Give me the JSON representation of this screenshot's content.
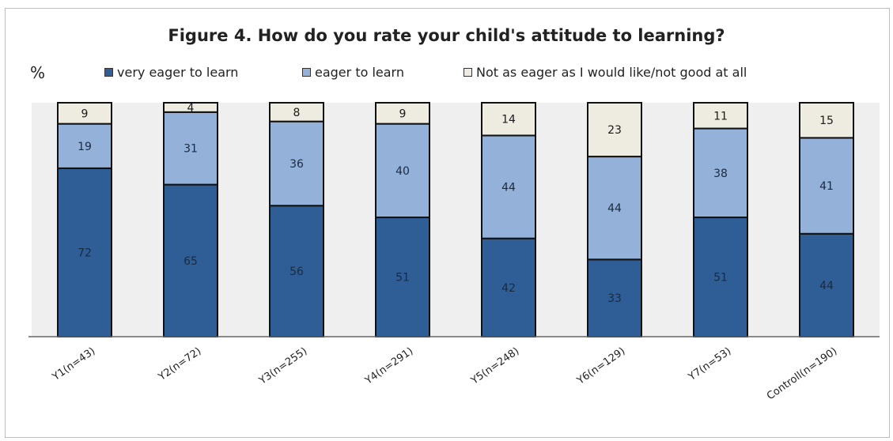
{
  "chart_data": {
    "type": "bar",
    "stacked": true,
    "title": "Figure 4. How do you rate your child's attitude to learning?",
    "y_unit_label": "%",
    "ylim": [
      0,
      100
    ],
    "grid": false,
    "legend_position": "top",
    "categories": [
      "Y1(n=43)",
      "Y2(n=72)",
      "Y3(n=255)",
      "Y4(n=291)",
      "Y5(n=248)",
      "Y6(n=129)",
      "Y7(n=53)",
      "Controll(n=190)"
    ],
    "series": [
      {
        "name": "very eager to learn",
        "color": "#2f5d96",
        "label_color": "#1a2b40",
        "values": [
          72,
          65,
          56,
          51,
          42,
          33,
          51,
          44
        ]
      },
      {
        "name": "eager to learn",
        "color": "#93b1d9",
        "label_color": "#1a2b40",
        "values": [
          19,
          31,
          36,
          40,
          44,
          44,
          38,
          41
        ]
      },
      {
        "name": "Not as eager as I would like/not good at all",
        "color": "#eeebe0",
        "label_color": "#1a1a1a",
        "values": [
          9,
          4,
          8,
          9,
          14,
          23,
          11,
          15
        ]
      }
    ]
  }
}
